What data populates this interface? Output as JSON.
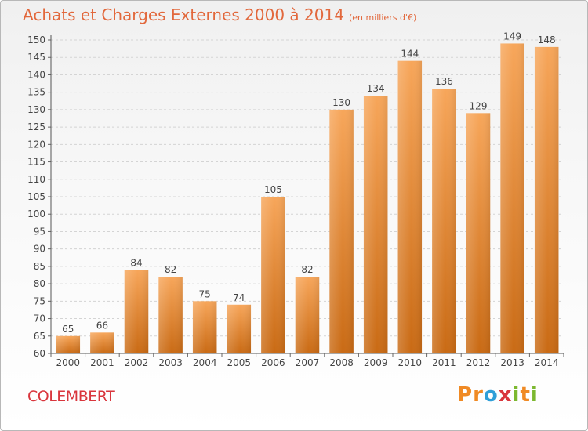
{
  "title": "Achats et Charges Externes 2000 à 2014",
  "subtitle": "(en milliers d'€)",
  "commune": "COLEMBERT",
  "logo": {
    "letters": [
      "P",
      "r",
      "o",
      "x",
      "i",
      "t",
      "i"
    ],
    "colors": [
      "#f08a24",
      "#f08a24",
      "#2f9fd8",
      "#d9363d",
      "#7cb82f",
      "#f08a24",
      "#7cb82f"
    ]
  },
  "colors": {
    "title": "#e2683c",
    "bar_light": "#f7a65a",
    "bar_dark": "#c96a14",
    "commune": "#d9363d"
  },
  "chart_data": {
    "type": "bar",
    "categories": [
      "2000",
      "2001",
      "2002",
      "2003",
      "2004",
      "2005",
      "2006",
      "2007",
      "2008",
      "2009",
      "2010",
      "2011",
      "2012",
      "2013",
      "2014"
    ],
    "values": [
      65,
      66,
      84,
      82,
      75,
      74,
      105,
      82,
      130,
      134,
      144,
      136,
      129,
      149,
      148
    ],
    "data_labels": [
      "65",
      "66",
      "84",
      "82",
      "75",
      "74",
      "105",
      "82",
      "130",
      "134",
      "144",
      "136",
      "129",
      "149",
      "148"
    ],
    "yticks": [
      "60",
      "65",
      "70",
      "75",
      "80",
      "85",
      "90",
      "95",
      "100",
      "105",
      "110",
      "115",
      "120",
      "125",
      "130",
      "135",
      "140",
      "145",
      "150"
    ],
    "ylim": [
      60,
      150
    ],
    "grid": true,
    "legend": "none"
  }
}
